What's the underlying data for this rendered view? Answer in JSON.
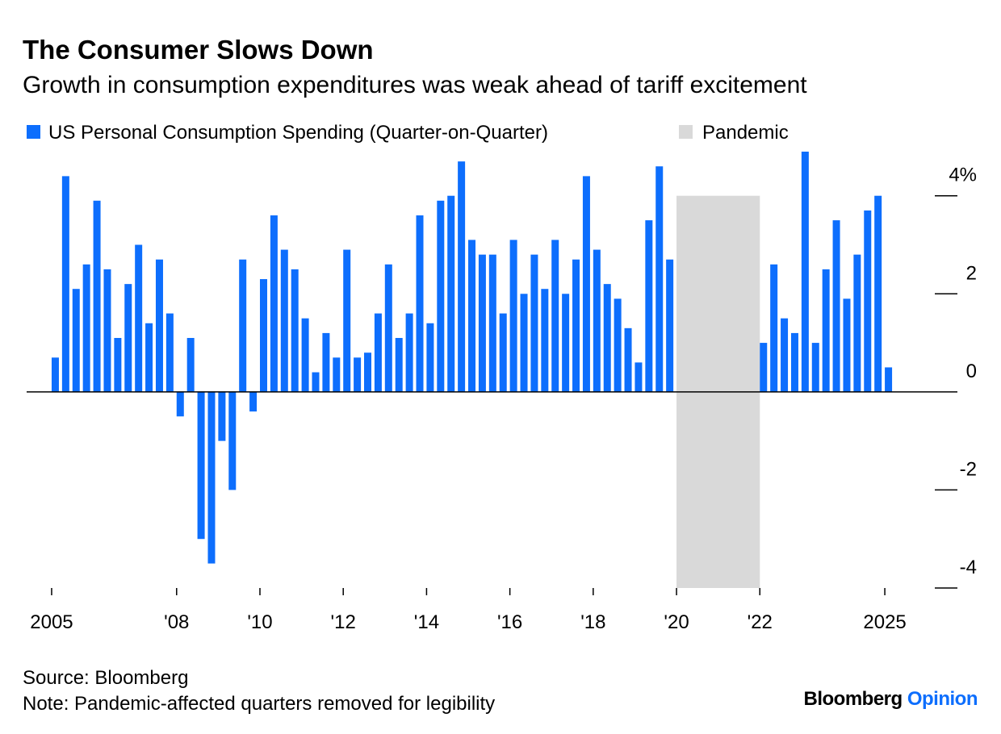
{
  "chart_data": {
    "type": "bar",
    "title": "The Consumer Slows Down",
    "subtitle": "Growth in consumption expenditures was weak ahead of tariff excitement",
    "source": "Source: Bloomberg",
    "note": "Note: Pandemic-affected quarters removed for legibility",
    "brand": "Bloomberg",
    "brand_sub": "Opinion",
    "x": [
      2005,
      2005.25,
      2005.5,
      2005.75,
      2006,
      2006.25,
      2006.5,
      2006.75,
      2007,
      2007.25,
      2007.5,
      2007.75,
      2008,
      2008.25,
      2008.5,
      2008.75,
      2009,
      2009.25,
      2009.5,
      2009.75,
      2010,
      2010.25,
      2010.5,
      2010.75,
      2011,
      2011.25,
      2011.5,
      2011.75,
      2012,
      2012.25,
      2012.5,
      2012.75,
      2013,
      2013.25,
      2013.5,
      2013.75,
      2014,
      2014.25,
      2014.5,
      2014.75,
      2015,
      2015.25,
      2015.5,
      2015.75,
      2016,
      2016.25,
      2016.5,
      2016.75,
      2017,
      2017.25,
      2017.5,
      2017.75,
      2018,
      2018.25,
      2018.5,
      2018.75,
      2019,
      2019.25,
      2019.5,
      2019.75,
      2020,
      2020.25,
      2020.5,
      2020.75,
      2021,
      2021.25,
      2021.5,
      2021.75,
      2022,
      2022.25,
      2022.5,
      2022.75,
      2023,
      2023.25,
      2023.5,
      2023.75,
      2024,
      2024.25,
      2024.5,
      2024.75,
      2025
    ],
    "series": [
      {
        "name": "US Personal Consumption Spending (Quarter-on-Quarter)",
        "color": "#0d6efd",
        "values": [
          0.7,
          4.4,
          2.1,
          2.6,
          3.9,
          2.5,
          1.1,
          2.2,
          3.0,
          1.4,
          2.7,
          1.6,
          -0.5,
          1.1,
          -3.0,
          -3.5,
          -1.0,
          -2.0,
          2.7,
          -0.4,
          2.3,
          3.6,
          2.9,
          2.5,
          1.5,
          0.4,
          1.2,
          0.7,
          2.9,
          0.7,
          0.8,
          1.6,
          2.6,
          1.1,
          1.6,
          3.6,
          1.4,
          3.9,
          4.0,
          4.7,
          3.1,
          2.8,
          2.8,
          1.6,
          3.1,
          2.0,
          2.8,
          2.1,
          3.1,
          2.0,
          2.7,
          4.4,
          2.9,
          2.2,
          1.9,
          1.3,
          0.6,
          3.5,
          4.6,
          2.7,
          null,
          null,
          null,
          null,
          null,
          null,
          null,
          null,
          1.0,
          2.6,
          1.5,
          1.2,
          4.9,
          1.0,
          2.5,
          3.5,
          1.9,
          2.8,
          3.7,
          4.0,
          0.5
        ]
      }
    ],
    "pandemic": {
      "label": "Pandemic",
      "color": "#d9d9d9",
      "start": 2020,
      "end": 2022,
      "ymin": -4,
      "ymax": 4
    },
    "xlim": [
      2004.4,
      2026.2
    ],
    "xticks": [
      {
        "value": 2005,
        "label": "2005"
      },
      {
        "value": 2008,
        "label": "'08"
      },
      {
        "value": 2010,
        "label": "'10"
      },
      {
        "value": 2012,
        "label": "'12"
      },
      {
        "value": 2014,
        "label": "'14"
      },
      {
        "value": 2016,
        "label": "'16"
      },
      {
        "value": 2018,
        "label": "'18"
      },
      {
        "value": 2020,
        "label": "'20"
      },
      {
        "value": 2022,
        "label": "'22"
      },
      {
        "value": 2025,
        "label": "2025"
      }
    ],
    "ylim": [
      -4,
      4.9
    ],
    "yticks": [
      {
        "value": 4,
        "label": "4%"
      },
      2,
      0,
      -2,
      -4
    ]
  }
}
